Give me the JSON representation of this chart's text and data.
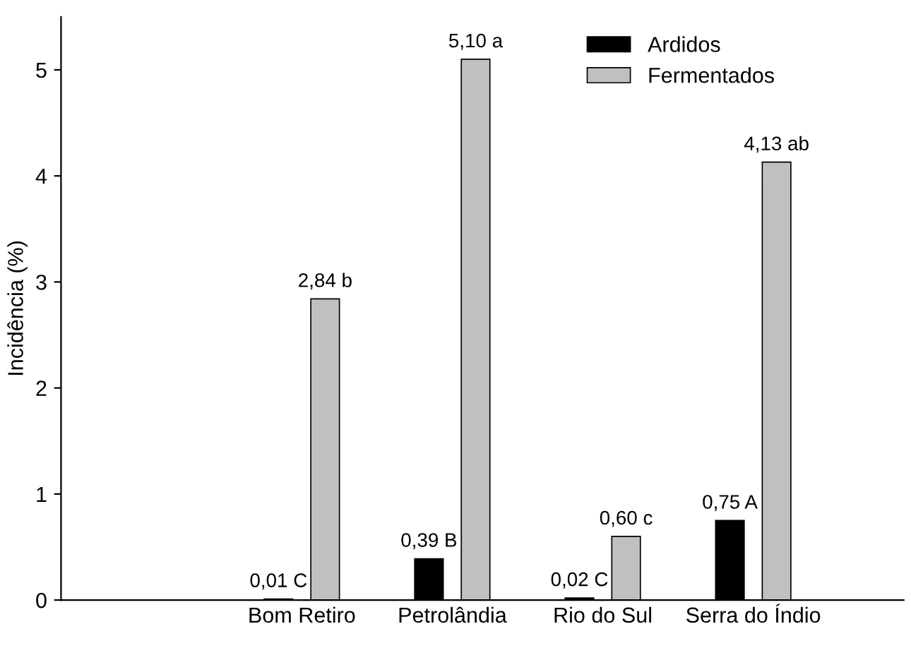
{
  "chart_data": {
    "type": "bar",
    "ylabel": "Incidência (%)",
    "categories": [
      null,
      "Bom Retiro",
      "Petrolândia",
      "Rio do Sul",
      "Serra do Índio"
    ],
    "series": [
      {
        "name": "Ardidos",
        "color": "#000000",
        "values": [
          null,
          0.01,
          0.39,
          0.02,
          0.75
        ],
        "value_labels": [
          null,
          "0,01 C",
          "0,39 B",
          "0,02 C",
          "0,75 A"
        ]
      },
      {
        "name": "Fermentados",
        "color": "#c0c0c0",
        "values": [
          null,
          2.84,
          5.1,
          0.6,
          4.13
        ],
        "value_labels": [
          null,
          "2,84 b",
          "5,10 a",
          "0,60 c",
          "4,13 ab"
        ]
      }
    ],
    "ylim": [
      0,
      5.5
    ],
    "yticks": [
      0,
      1,
      2,
      3,
      4,
      5
    ],
    "legend": "top right",
    "grid": false
  }
}
